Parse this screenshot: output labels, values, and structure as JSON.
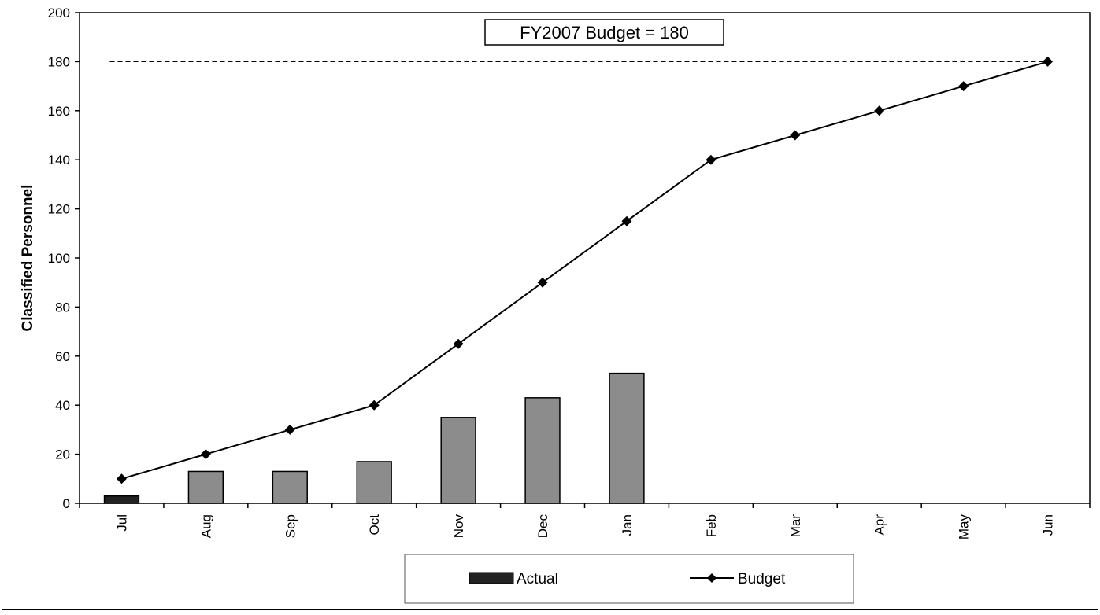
{
  "chart_data": {
    "type": "bar",
    "title": "",
    "xlabel": "",
    "ylabel": "Classified Personnel",
    "ylim": [
      0,
      200
    ],
    "yticks": [
      0,
      20,
      40,
      60,
      80,
      100,
      120,
      140,
      160,
      180,
      200
    ],
    "categories": [
      "Jul",
      "Aug",
      "Sep",
      "Oct",
      "Nov",
      "Dec",
      "Jan",
      "Feb",
      "Mar",
      "Apr",
      "May",
      "Jun"
    ],
    "series": [
      {
        "name": "Actual",
        "type": "bar",
        "color": "#8c8c8c",
        "values": [
          3,
          13,
          13,
          17,
          35,
          43,
          53,
          null,
          null,
          null,
          null,
          null
        ]
      },
      {
        "name": "Budget",
        "type": "line",
        "color": "#000000",
        "marker": "diamond",
        "values": [
          10,
          20,
          30,
          40,
          65,
          90,
          115,
          140,
          150,
          160,
          170,
          180
        ]
      }
    ],
    "reference_line": {
      "value": 180,
      "style": "dashed"
    },
    "annotations": [
      {
        "text": "FY2007 Budget = 180"
      }
    ],
    "legend": {
      "position": "bottom"
    },
    "grid": false
  }
}
